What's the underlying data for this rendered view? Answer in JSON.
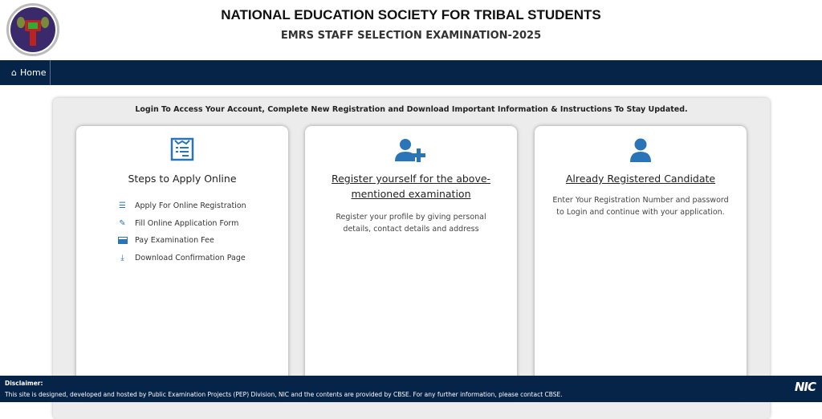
{
  "header": {
    "title": "NATIONAL EDUCATION SOCIETY FOR TRIBAL STUDENTS",
    "subtitle": "EMRS STAFF SELECTION EXAMINATION-2025"
  },
  "nav": {
    "home": "Home"
  },
  "intro": "Login To Access Your Account, Complete New Registration and Download Important Information & Instructions To Stay Updated.",
  "cards": [
    {
      "title": "Steps to Apply Online",
      "icon": "form-icon",
      "steps": [
        {
          "label": "Apply For Online Registration",
          "icon": "list-icon"
        },
        {
          "label": "Fill Online Application Form",
          "icon": "edit-icon"
        },
        {
          "label": "Pay Examination Fee",
          "icon": "credit-card-icon"
        },
        {
          "label": "Download Confirmation Page",
          "icon": "download-icon"
        }
      ]
    },
    {
      "title": "Register yourself for the above-mentioned examination",
      "icon": "user-plus-icon",
      "desc": "Register your profile by giving personal details, contact details and address"
    },
    {
      "title": "Already Registered Candidate",
      "icon": "user-icon",
      "desc": "Enter Your Registration Number and password to Login and continue with your application."
    }
  ],
  "footer": {
    "heading": "Disclaimer:",
    "text": "This site is designed, developed and hosted by Public Examination Projects (PEP) Division, NIC and the contents are provided by CBSE. For any further information, please contact CBSE.",
    "logo": "NIC"
  },
  "colors": {
    "nav": "#062348",
    "accent": "#2a74b8"
  }
}
